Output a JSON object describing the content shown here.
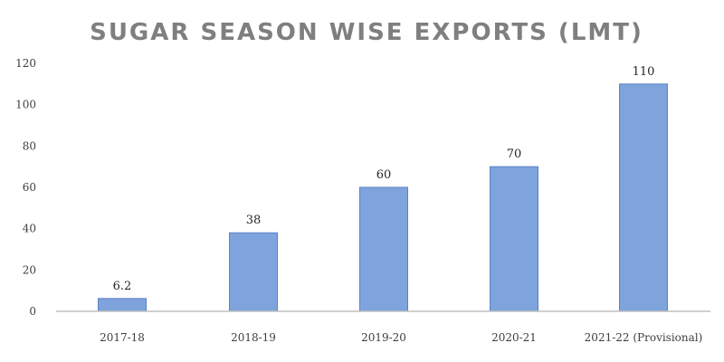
{
  "chart_data": {
    "type": "bar",
    "title": "SUGAR SEASON WISE EXPORTS (LMT)",
    "categories": [
      "2017-18",
      "2018-19",
      "2019-20",
      "2020-21",
      "2021-22 (Provisional)"
    ],
    "values": [
      6.2,
      38,
      60,
      70,
      110
    ],
    "data_labels": [
      "6.2",
      "38",
      "60",
      "70",
      "110"
    ],
    "xlabel": "",
    "ylabel": "",
    "ylim": [
      0,
      120
    ],
    "yticks": [
      0,
      20,
      40,
      60,
      80,
      100,
      120
    ],
    "grid": false,
    "legend": "none",
    "colors": {
      "bar": "#7fa3dc",
      "bar_border": "#5a82c6",
      "axis": "#bfbfbf",
      "title": "#7f7f7f"
    }
  }
}
